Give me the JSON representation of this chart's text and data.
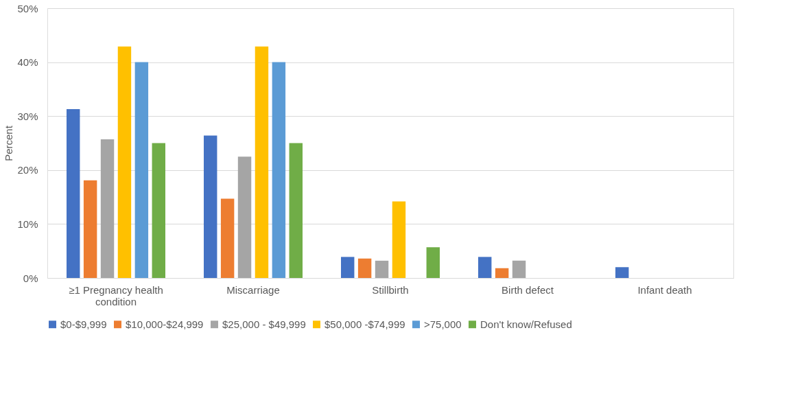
{
  "chart_data": {
    "type": "bar",
    "ylabel": "Percent",
    "categories": [
      "≥1 Pregnancy health condition",
      "Miscarriage",
      "Stillbirth",
      "Birth defect",
      "Infant death"
    ],
    "series": [
      {
        "name": "$0-$9,999",
        "color": "#4472c4",
        "values": [
          31.3,
          26.4,
          3.9,
          3.9,
          2.0
        ]
      },
      {
        "name": "$10,000-$24,999",
        "color": "#ed7d31",
        "values": [
          18.1,
          14.7,
          3.6,
          1.8,
          0
        ]
      },
      {
        "name": "$25,000 - $49,999",
        "color": "#a5a5a5",
        "values": [
          25.7,
          22.5,
          3.2,
          3.2,
          0
        ]
      },
      {
        "name": "$50,000 -$74,999",
        "color": "#ffc000",
        "values": [
          42.9,
          42.9,
          14.2,
          0,
          0
        ]
      },
      {
        "name": ">75,000",
        "color": "#5b9bd5",
        "values": [
          40.0,
          40.0,
          0,
          0,
          0
        ]
      },
      {
        "name": "Don't know/Refused",
        "color": "#70ad47",
        "values": [
          25.0,
          25.0,
          5.7,
          0,
          0
        ]
      }
    ],
    "ylim": [
      0,
      50
    ],
    "yticks": [
      {
        "value": 0,
        "label": "0%"
      },
      {
        "value": 10,
        "label": "10%"
      },
      {
        "value": 20,
        "label": "20%"
      },
      {
        "value": 30,
        "label": "30%"
      },
      {
        "value": 40,
        "label": "40%"
      },
      {
        "value": 50,
        "label": "50%"
      }
    ],
    "grid": "y",
    "legend": "bottom"
  }
}
